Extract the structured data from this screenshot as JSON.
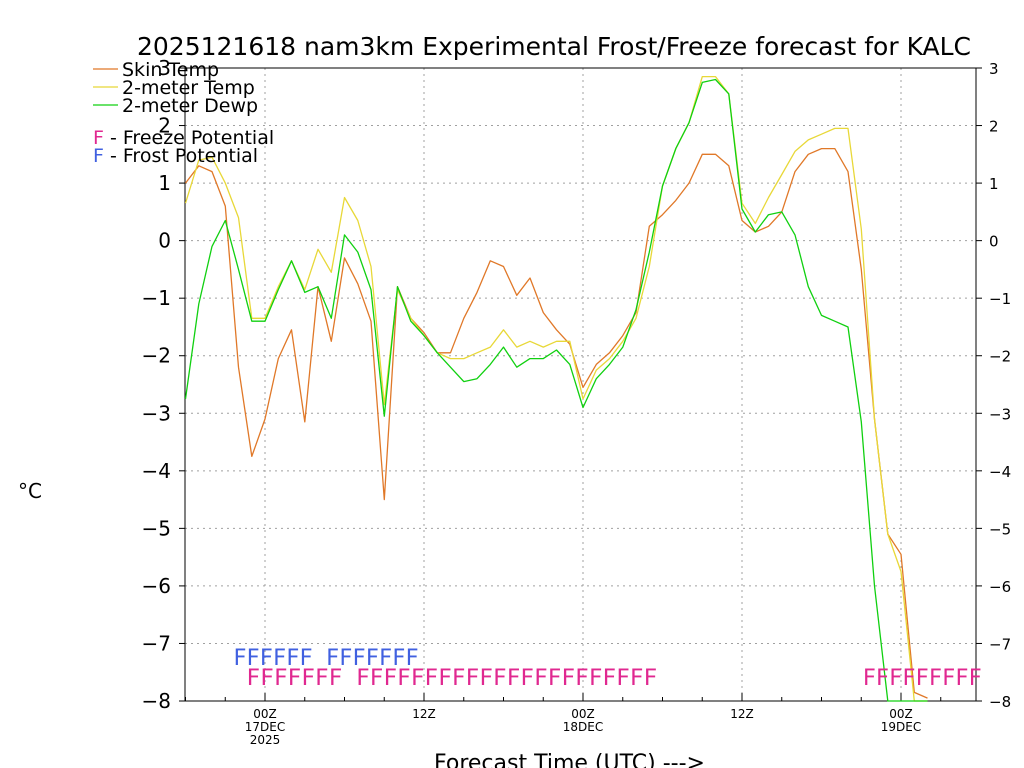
{
  "chart_data": {
    "type": "line",
    "title": "2025121618 nam3km Experimental Frost/Freeze forecast for KALC",
    "xlabel": "Forecast Time (UTC) --->",
    "ylabel": "°C",
    "ylim": [
      -8,
      3
    ],
    "y_ticks": [
      3,
      2,
      1,
      0,
      -1,
      -2,
      -3,
      -4,
      -5,
      -6,
      -7,
      -8
    ],
    "xlim": [
      -6,
      54
    ],
    "x_ticks": [
      {
        "x": 0,
        "label": "00Z",
        "sub1": "17DEC",
        "sub2": "2025"
      },
      {
        "x": 12,
        "label": "12Z",
        "sub1": "",
        "sub2": ""
      },
      {
        "x": 24,
        "label": "00Z",
        "sub1": "18DEC",
        "sub2": ""
      },
      {
        "x": 36,
        "label": "12Z",
        "sub1": "",
        "sub2": ""
      },
      {
        "x": 48,
        "label": "00Z",
        "sub1": "19DEC",
        "sub2": ""
      }
    ],
    "grid": true,
    "legend": [
      {
        "name": "Skin Temp",
        "color": "#e07828"
      },
      {
        "name": "2-meter Temp",
        "color": "#e8d838"
      },
      {
        "name": "2-meter Dewp",
        "color": "#10d010"
      }
    ],
    "key": [
      {
        "letter": "F",
        "text": " - Freeze Potential",
        "color": "#e02890"
      },
      {
        "letter": "F",
        "text": " - Frost Potential",
        "color": "#4060e0"
      }
    ],
    "series": [
      {
        "name": "Skin Temp",
        "color": "#e07828",
        "x": [
          -6,
          -5,
          -4,
          -3,
          -2,
          -1,
          0,
          1,
          2,
          3,
          4,
          5,
          6,
          7,
          8,
          9,
          10,
          11,
          12,
          13,
          14,
          15,
          16,
          17,
          18,
          19,
          20,
          21,
          22,
          23,
          24,
          25,
          26,
          27,
          28,
          29,
          30,
          31,
          32,
          33,
          34,
          35,
          36,
          37,
          38,
          39,
          40,
          41,
          42,
          43,
          44,
          45,
          46,
          47,
          48,
          49,
          50
        ],
        "values": [
          1.0,
          1.3,
          1.2,
          0.6,
          -2.2,
          -3.75,
          -3.1,
          -2.05,
          -1.55,
          -3.15,
          -0.8,
          -1.75,
          -0.3,
          -0.75,
          -1.4,
          -4.5,
          -0.8,
          -1.35,
          -1.6,
          -1.95,
          -1.95,
          -1.35,
          -0.9,
          -0.35,
          -0.45,
          -0.95,
          -0.65,
          -1.25,
          -1.55,
          -1.8,
          -2.55,
          -2.15,
          -1.95,
          -1.65,
          -1.25,
          0.25,
          0.45,
          0.7,
          1.0,
          1.5,
          1.5,
          1.3,
          0.35,
          0.15,
          0.25,
          0.5,
          1.2,
          1.5,
          1.6,
          1.6,
          1.2,
          -0.5,
          -3.1,
          -5.1,
          -5.45,
          -7.85,
          -7.95
        ]
      },
      {
        "name": "2-meter Temp",
        "color": "#e8d838",
        "x": [
          -6,
          -5,
          -4,
          -3,
          -2,
          -1,
          0,
          1,
          2,
          3,
          4,
          5,
          6,
          7,
          8,
          9,
          10,
          11,
          12,
          13,
          14,
          15,
          16,
          17,
          18,
          19,
          20,
          21,
          22,
          23,
          24,
          25,
          26,
          27,
          28,
          29,
          30,
          31,
          32,
          33,
          34,
          35,
          36,
          37,
          38,
          39,
          40,
          41,
          42,
          43,
          44,
          45,
          46,
          47,
          48,
          49,
          50
        ],
        "values": [
          0.65,
          1.4,
          1.45,
          1.0,
          0.4,
          -1.35,
          -1.35,
          -0.8,
          -0.35,
          -0.85,
          -0.15,
          -0.55,
          0.75,
          0.35,
          -0.45,
          -2.85,
          -0.85,
          -1.35,
          -1.65,
          -1.95,
          -2.05,
          -2.05,
          -1.95,
          -1.85,
          -1.55,
          -1.85,
          -1.75,
          -1.85,
          -1.75,
          -1.75,
          -2.75,
          -2.25,
          -2.05,
          -1.75,
          -1.35,
          -0.45,
          0.95,
          1.6,
          2.05,
          2.85,
          2.85,
          2.55,
          0.65,
          0.3,
          0.75,
          1.15,
          1.55,
          1.75,
          1.85,
          1.95,
          1.95,
          0.2,
          -3.1,
          -5.1,
          -5.75,
          -8.0,
          -8.0
        ]
      },
      {
        "name": "2-meter Dewp",
        "color": "#10d010",
        "x": [
          -6,
          -5,
          -4,
          -3,
          -2,
          -1,
          0,
          1,
          2,
          3,
          4,
          5,
          6,
          7,
          8,
          9,
          10,
          11,
          12,
          13,
          14,
          15,
          16,
          17,
          18,
          19,
          20,
          21,
          22,
          23,
          24,
          25,
          26,
          27,
          28,
          29,
          30,
          31,
          32,
          33,
          34,
          35,
          36,
          37,
          38,
          39,
          40,
          41,
          42,
          43,
          44,
          45,
          46,
          47,
          48,
          49,
          50
        ],
        "values": [
          -2.75,
          -1.1,
          -0.1,
          0.35,
          -0.5,
          -1.4,
          -1.4,
          -0.85,
          -0.35,
          -0.9,
          -0.8,
          -1.35,
          0.1,
          -0.2,
          -0.85,
          -3.05,
          -0.8,
          -1.4,
          -1.65,
          -1.95,
          -2.2,
          -2.45,
          -2.4,
          -2.15,
          -1.85,
          -2.2,
          -2.05,
          -2.05,
          -1.9,
          -2.15,
          -2.9,
          -2.4,
          -2.15,
          -1.85,
          -1.2,
          -0.2,
          0.95,
          1.6,
          2.05,
          2.75,
          2.8,
          2.55,
          0.55,
          0.15,
          0.45,
          0.5,
          0.1,
          -0.8,
          -1.3,
          -1.4,
          -1.5,
          -3.15,
          -6.0,
          -8.0,
          -8.0,
          -8.0,
          -8.0
        ]
      }
    ],
    "frost_rows": [
      {
        "type": "Frost Potential",
        "color": "#4060e0",
        "level": -7.2,
        "text": "FFFFFF FFFFFFF",
        "start_x": -2.4
      },
      {
        "type": "Freeze Potential",
        "color": "#e02890",
        "level": -7.55,
        "text": "FFFFFFF  FFFFFFFFFFFFFFFFFFFFFF",
        "start_x": -1.4
      }
    ],
    "freeze_row_end": {
      "type": "Freeze Potential",
      "color": "#e02890",
      "level": -7.55,
      "text": "FFFFFFFFF",
      "start_x": 45.1
    }
  }
}
